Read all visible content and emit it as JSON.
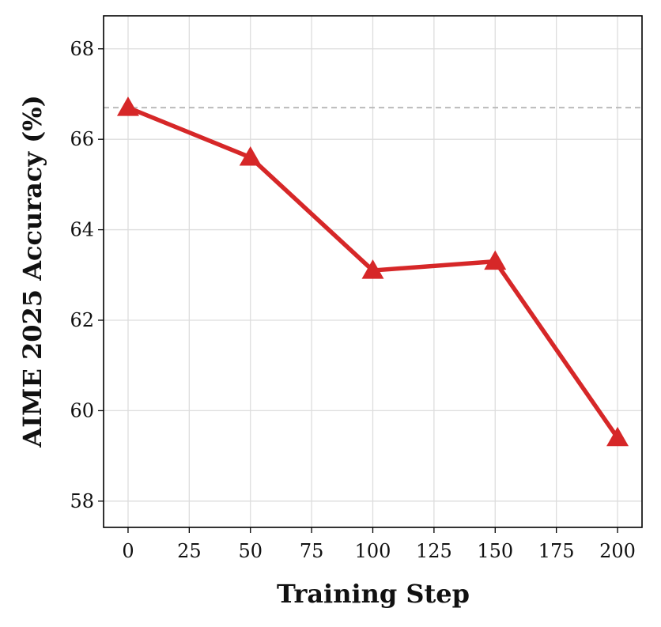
{
  "chart_data": {
    "type": "line",
    "xlabel": "Training Step",
    "ylabel": "AIME 2025 Accuracy (%)",
    "x": [
      0,
      50,
      100,
      150,
      200
    ],
    "values": [
      66.7,
      65.6,
      63.1,
      63.3,
      59.4
    ],
    "color": "#d62728",
    "reference_line": 66.7,
    "xlim": [
      -10,
      210
    ],
    "xticks": [
      0,
      25,
      50,
      75,
      100,
      125,
      150,
      175,
      200
    ],
    "ylim": [
      57.42,
      68.73
    ],
    "yticks": [
      58,
      60,
      62,
      64,
      66,
      68
    ],
    "grid": true
  }
}
